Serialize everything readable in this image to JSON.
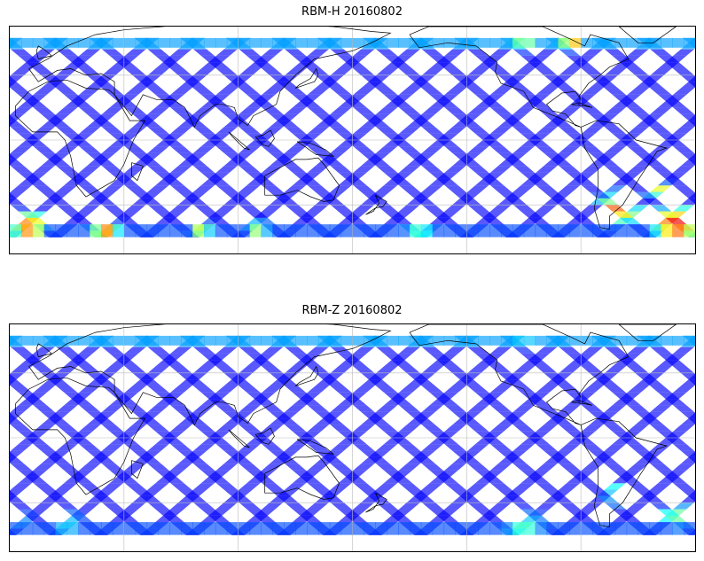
{
  "panels": [
    {
      "title": "RBM-H 20160802",
      "high_regions": [
        {
          "lon": -10,
          "lat": -53,
          "level": 0.95,
          "radius_deg": 14
        },
        {
          "lon": 30,
          "lat": -55,
          "level": 0.85,
          "radius_deg": 12
        },
        {
          "lon": 80,
          "lat": -54,
          "level": 0.7,
          "radius_deg": 10
        },
        {
          "lon": 110,
          "lat": -55,
          "level": 0.6,
          "radius_deg": 10
        },
        {
          "lon": 130,
          "lat": 65,
          "level": 0.55,
          "radius_deg": 10
        },
        {
          "lon": 250,
          "lat": 65,
          "level": 0.8,
          "radius_deg": 14
        },
        {
          "lon": 275,
          "lat": 62,
          "level": 0.95,
          "radius_deg": 10
        },
        {
          "lon": 300,
          "lat": -42,
          "level": 0.9,
          "radius_deg": 16
        },
        {
          "lon": 330,
          "lat": -52,
          "level": 1.0,
          "radius_deg": 18
        },
        {
          "lon": 320,
          "lat": -30,
          "level": 0.75,
          "radius_deg": 10
        },
        {
          "lon": 195,
          "lat": -55,
          "level": 0.5,
          "radius_deg": 14
        }
      ]
    },
    {
      "title": "RBM-Z 20160802",
      "high_regions": [
        {
          "lon": 10,
          "lat": -52,
          "level": 0.45,
          "radius_deg": 14
        },
        {
          "lon": 250,
          "lat": -55,
          "level": 0.5,
          "radius_deg": 18
        },
        {
          "lon": 300,
          "lat": -35,
          "level": 0.8,
          "radius_deg": 10
        },
        {
          "lon": 315,
          "lat": -25,
          "level": 0.75,
          "radius_deg": 8
        },
        {
          "lon": 330,
          "lat": -48,
          "level": 0.55,
          "radius_deg": 14
        },
        {
          "lon": 250,
          "lat": 62,
          "level": 0.45,
          "radius_deg": 12
        },
        {
          "lon": 345,
          "lat": -50,
          "level": 0.5,
          "radius_deg": 10
        }
      ]
    }
  ],
  "map": {
    "lon_range": [
      -20,
      340
    ],
    "lat_range": [
      -70,
      70
    ],
    "gridlines_lon": [
      40,
      100,
      160,
      220,
      280
    ],
    "gridlines_lat": [
      -40,
      0,
      40
    ],
    "colormap": "jet",
    "track_count": 15,
    "track_width_deg": 7
  }
}
